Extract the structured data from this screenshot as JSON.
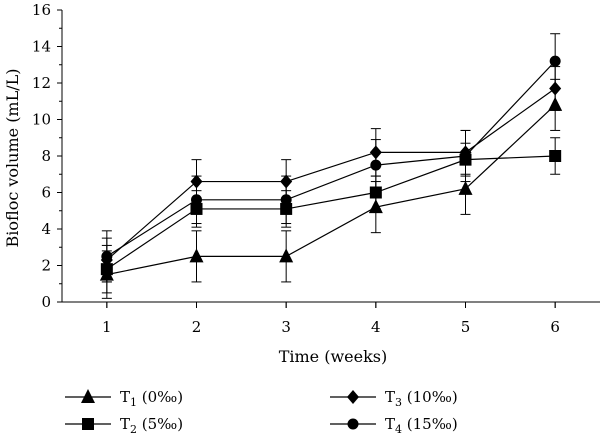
{
  "chart_data": {
    "type": "line",
    "xlabel": "Time (weeks)",
    "ylabel": "Biofloc volume (mL/L)",
    "xlim": [
      0.5,
      6.5
    ],
    "ylim": [
      0,
      16
    ],
    "x_ticks": [
      1,
      2,
      3,
      4,
      5,
      6
    ],
    "y_ticks": [
      0,
      2,
      4,
      6,
      8,
      10,
      12,
      14,
      16
    ],
    "grid": false,
    "legend_placement": "bottom",
    "series": [
      {
        "name_base": "T",
        "name_sub": "1",
        "name_suffix": " (0‰)",
        "marker": "triangle",
        "x": [
          1,
          2,
          3,
          4,
          5,
          6
        ],
        "values": [
          1.5,
          2.5,
          2.5,
          5.2,
          6.2,
          10.8
        ],
        "errors": [
          1.3,
          1.4,
          1.4,
          1.4,
          1.4,
          1.4
        ]
      },
      {
        "name_base": "T",
        "name_sub": "2",
        "name_suffix": " (5‰)",
        "marker": "square",
        "x": [
          1,
          2,
          3,
          4,
          5,
          6
        ],
        "values": [
          1.8,
          5.1,
          5.1,
          6.0,
          7.8,
          8.0
        ],
        "errors": [
          1.3,
          1.0,
          1.0,
          0.9,
          0.9,
          1.0
        ]
      },
      {
        "name_base": "T",
        "name_sub": "3",
        "name_suffix": " (10‰)",
        "marker": "diamond",
        "x": [
          1,
          2,
          3,
          4,
          5,
          6
        ],
        "values": [
          2.3,
          6.6,
          6.6,
          8.2,
          8.2,
          11.7
        ],
        "errors": [
          1.2,
          1.2,
          1.2,
          1.3,
          1.2,
          1.2
        ]
      },
      {
        "name_base": "T",
        "name_sub": "4",
        "name_suffix": " (15‰)",
        "marker": "circle",
        "x": [
          1,
          2,
          3,
          4,
          5,
          6
        ],
        "values": [
          2.5,
          5.6,
          5.6,
          7.5,
          8.0,
          13.2
        ],
        "errors": [
          1.4,
          1.3,
          1.3,
          1.4,
          1.4,
          1.5
        ]
      }
    ]
  }
}
